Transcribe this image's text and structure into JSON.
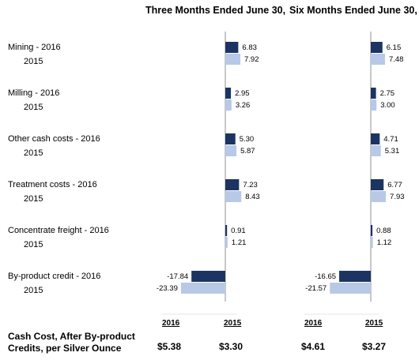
{
  "chart_data": {
    "type": "bar",
    "orientation": "horizontal",
    "panels": [
      {
        "title": "Three Months Ended June 30,"
      },
      {
        "title": "Six Months Ended June 30,"
      }
    ],
    "categories": [
      {
        "label_2016": "Mining - 2016",
        "label_2015": "2015"
      },
      {
        "label_2016": "Milling - 2016",
        "label_2015": "2015"
      },
      {
        "label_2016": "Other cash costs - 2016",
        "label_2015": "2015"
      },
      {
        "label_2016": "Treatment costs - 2016",
        "label_2015": "2015"
      },
      {
        "label_2016": "Concentrate freight - 2016",
        "label_2015": "2015"
      },
      {
        "label_2016": "By-product credit - 2016",
        "label_2015": "2015"
      }
    ],
    "series": [
      {
        "name": "2016",
        "color": "#1c3461"
      },
      {
        "name": "2015",
        "color": "#b7c9e6"
      }
    ],
    "values": {
      "three_months": {
        "2016": [
          6.83,
          2.95,
          5.3,
          7.23,
          0.91,
          -17.84
        ],
        "2015": [
          7.92,
          3.26,
          5.87,
          8.43,
          1.21,
          -23.39
        ]
      },
      "six_months": {
        "2016": [
          6.15,
          2.75,
          4.71,
          6.77,
          0.88,
          -16.65
        ],
        "2015": [
          7.48,
          3.0,
          5.31,
          7.93,
          1.12,
          -21.57
        ]
      }
    },
    "value_labels": {
      "three_months": {
        "2016": [
          "6.83",
          "2.95",
          "5.30",
          "7.23",
          "0.91",
          "-17.84"
        ],
        "2015": [
          "7.92",
          "3.26",
          "5.87",
          "8.43",
          "1.21",
          "-23.39"
        ]
      },
      "six_months": {
        "2016": [
          "6.15",
          "2.75",
          "4.71",
          "6.77",
          "0.88",
          "-16.65"
        ],
        "2015": [
          "7.48",
          "3.00",
          "5.31",
          "7.93",
          "1.12",
          "-21.57"
        ]
      }
    },
    "footer": {
      "label_line1": "Cash Cost, After By-product",
      "label_line2": "Credits, per Silver Ounce",
      "three_months": {
        "year_2016": "2016",
        "year_2015": "2015",
        "value_2016": "$5.38",
        "value_2015": "$3.30"
      },
      "six_months": {
        "year_2016": "2016",
        "year_2015": "2015",
        "value_2016": "$4.61",
        "value_2015": "$3.27"
      }
    }
  }
}
